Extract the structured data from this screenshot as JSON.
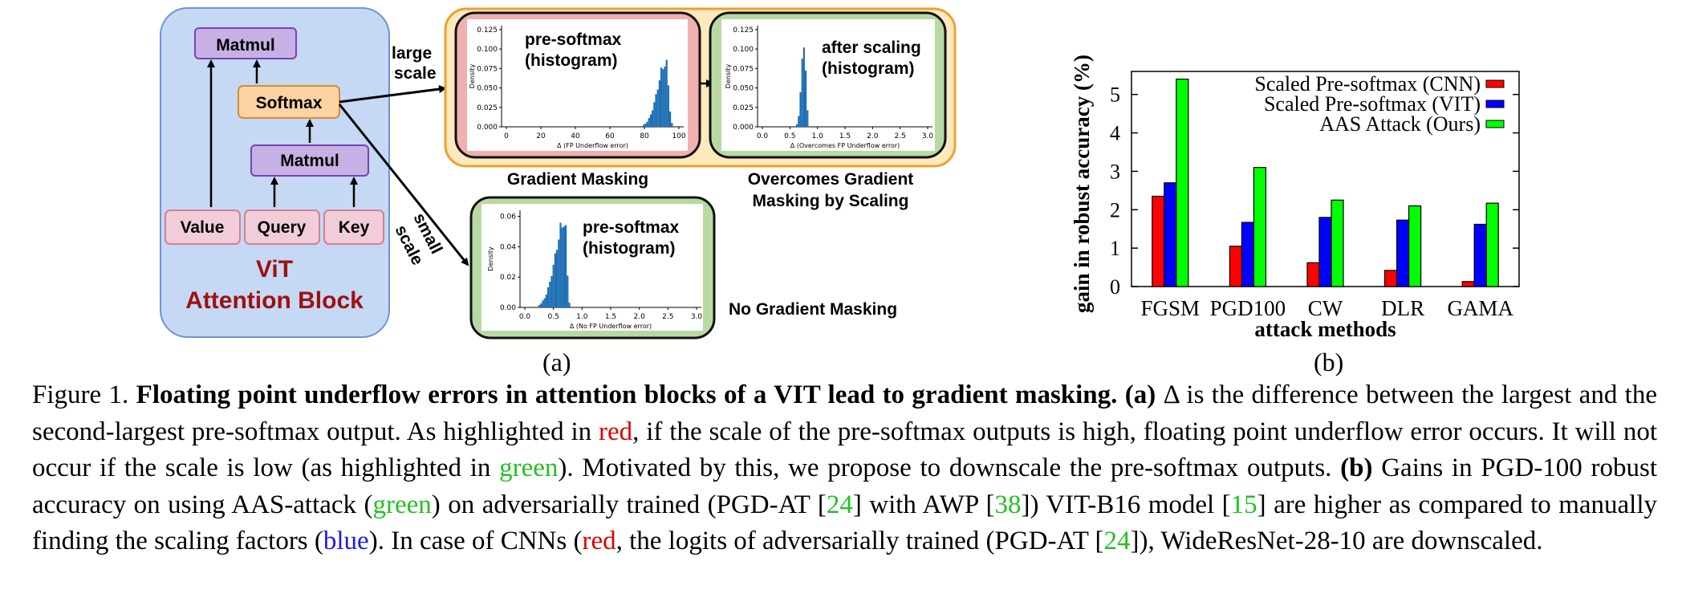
{
  "panel_a": {
    "block": {
      "matmul_top": "Matmul",
      "softmax": "Softmax",
      "matmul_mid": "Matmul",
      "value": "Value",
      "query": "Query",
      "key": "Key",
      "title_line1": "ViT",
      "title_line2": "Attention Block"
    },
    "arrow_labels": {
      "large_1": "large",
      "large_2": "scale",
      "small_1": "small",
      "small_2": "scale"
    },
    "captions": {
      "gradient_masking": "Gradient Masking",
      "overcomes_1": "Overcomes Gradient",
      "overcomes_2": "Masking by Scaling",
      "no_masking": "No Gradient Masking"
    },
    "hist1": {
      "title_1": "pre-softmax",
      "title_2": "(histogram)",
      "ylabel": "Density",
      "xlabel": "Δ (FP Underflow error)",
      "yticks": [
        "0.000",
        "0.025",
        "0.050",
        "0.075",
        "0.100",
        "0.125"
      ],
      "xticks": [
        "0",
        "20",
        "40",
        "60",
        "80",
        "100"
      ]
    },
    "hist2": {
      "title_1": "after scaling",
      "title_2": "(histogram)",
      "ylabel": "Density",
      "xlabel": "Δ (Overcomes FP Underflow error)",
      "yticks": [
        "0.000",
        "0.025",
        "0.050",
        "0.075",
        "0.100",
        "0.125"
      ],
      "xticks": [
        "0.0",
        "0.5",
        "1.0",
        "1.5",
        "2.0",
        "2.5",
        "3.0"
      ]
    },
    "hist3": {
      "title_1": "pre-softmax",
      "title_2": "(histogram)",
      "ylabel": "Density",
      "xlabel": "Δ (No FP Underflow error)",
      "yticks": [
        "0.00",
        "0.02",
        "0.04",
        "0.06"
      ],
      "xticks": [
        "0.0",
        "0.5",
        "1.0",
        "1.5",
        "2.0",
        "2.5",
        "3.0"
      ]
    },
    "label": "(a)"
  },
  "chart_data": {
    "type": "bar",
    "categories": [
      "FGSM",
      "PGD100",
      "CW",
      "DLR",
      "GAMA"
    ],
    "series": [
      {
        "name": "Scaled Pre-softmax (CNN)",
        "color": "#ff0000",
        "values": [
          2.35,
          1.05,
          0.62,
          0.42,
          0.13
        ]
      },
      {
        "name": "Scaled Pre-softmax (VIT)",
        "color": "#0000ff",
        "values": [
          2.7,
          1.67,
          1.8,
          1.73,
          1.62
        ]
      },
      {
        "name": "AAS Attack (Ours)",
        "color": "#00ff00",
        "values": [
          5.4,
          3.1,
          2.25,
          2.1,
          2.17
        ]
      }
    ],
    "xlabel": "attack methods",
    "ylabel": "gain in robust accuracy (%)",
    "yticks": [
      "0",
      "1",
      "2",
      "3",
      "4",
      "5"
    ],
    "ylim": [
      0,
      5.6
    ],
    "legend": "top-right",
    "label": "(b)"
  },
  "caption": {
    "s1": "Figure 1.",
    "s2": "Floating point underflow errors in attention blocks of a VIT lead to gradient masking.",
    "s3": "(a)",
    "s4": "Δ is the difference between the largest and the second-largest pre-softmax output. As highlighted in",
    "s5": "red",
    "s6": ", if the scale of the pre-softmax outputs is high, floating point underflow error occurs. It will not occur if the scale is low (as highlighted in",
    "s7": "green",
    "s8": "). Motivated by this, we propose to downscale the pre-softmax outputs.",
    "s9": "(b)",
    "s10": "Gains in PGD-100 robust accuracy on using AAS-attack (",
    "s11": "green",
    "s12": ") on adversarially trained (PGD-AT [",
    "s13": "24",
    "s14": "] with AWP [",
    "s15": "38",
    "s16": "]) VIT-B16 model [",
    "s17": "15",
    "s18": "] are higher as compared to manually finding the scaling factors (",
    "s19": "blue",
    "s20": "). In case of CNNs (",
    "s21": "red",
    "s22": ", the logits of adversarially trained (PGD-AT [",
    "s23": "24",
    "s24": "]), WideResNet-28-10 are downscaled."
  }
}
